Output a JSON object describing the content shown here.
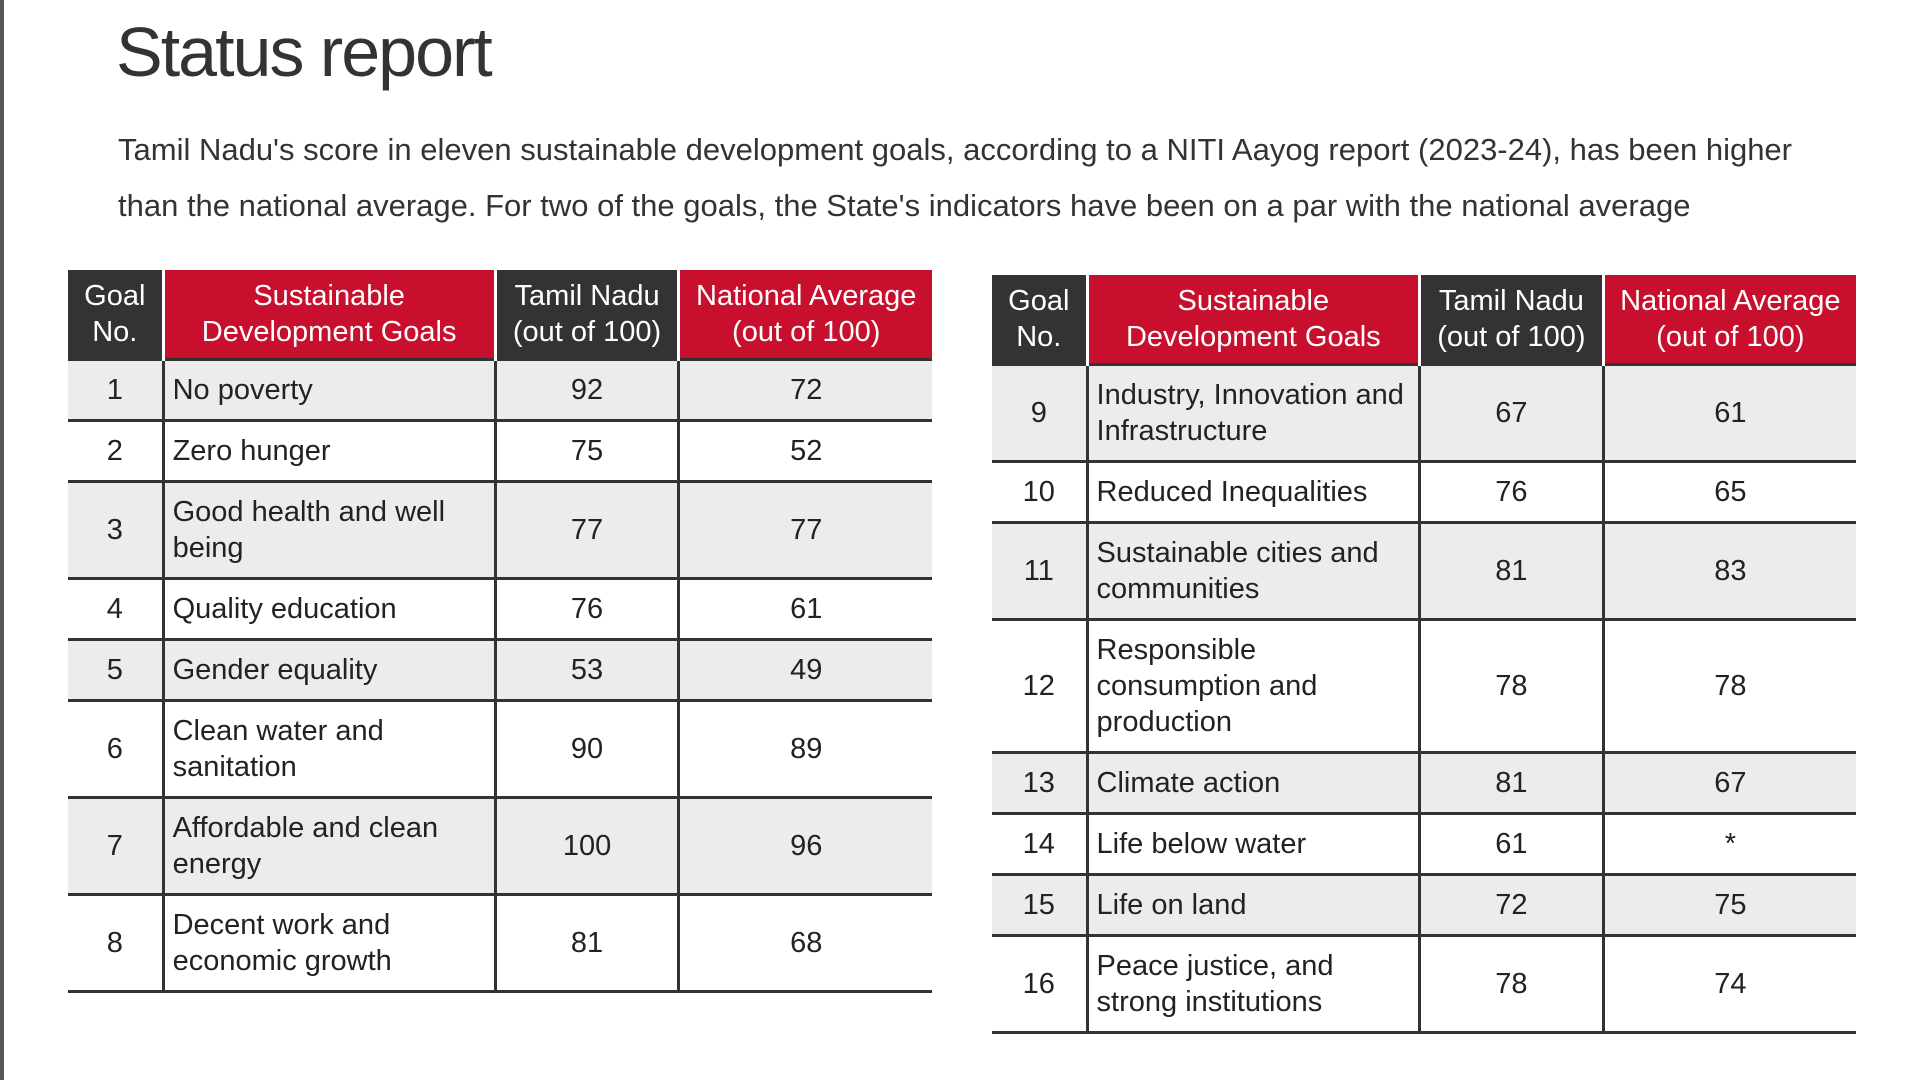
{
  "header": {
    "title": "Status report",
    "subtitle": "Tamil Nadu's score in eleven sustainable development goals, according to a NITI Aayog report (2023-24), has been higher than the national average. For two of the goals, the State's indicators have been on a par with the national average"
  },
  "tables": [
    {
      "headers": [
        "Goal No.",
        "Sustainable Development Goals",
        "Tamil Nadu (out of 100)",
        "National Average (out of 100)"
      ],
      "rows": [
        [
          1,
          "No poverty",
          92,
          72
        ],
        [
          2,
          "Zero hunger",
          75,
          52
        ],
        [
          3,
          "Good health and well being",
          77,
          77
        ],
        [
          4,
          "Quality education",
          76,
          61
        ],
        [
          5,
          "Gender equality",
          53,
          49
        ],
        [
          6,
          "Clean water and sanitation",
          90,
          89
        ],
        [
          7,
          "Affordable and clean energy",
          100,
          96
        ],
        [
          8,
          "Decent work and economic growth",
          81,
          68
        ]
      ]
    },
    {
      "headers": [
        "Goal No.",
        "Sustainable Development Goals",
        "Tamil Nadu (out of 100)",
        "National Average (out of 100)"
      ],
      "rows": [
        [
          9,
          "Industry, Innovation and Infrastructure",
          67,
          61
        ],
        [
          10,
          "Reduced Inequalities",
          76,
          65
        ],
        [
          11,
          "Sustainable cities and communities",
          81,
          83
        ],
        [
          12,
          "Responsible consumption and production",
          78,
          78
        ],
        [
          13,
          "Climate action",
          81,
          67
        ],
        [
          14,
          "Life below water",
          61,
          "*"
        ],
        [
          15,
          "Life on land",
          72,
          75
        ],
        [
          16,
          "Peace justice, and strong institutions",
          78,
          74
        ]
      ]
    }
  ]
}
